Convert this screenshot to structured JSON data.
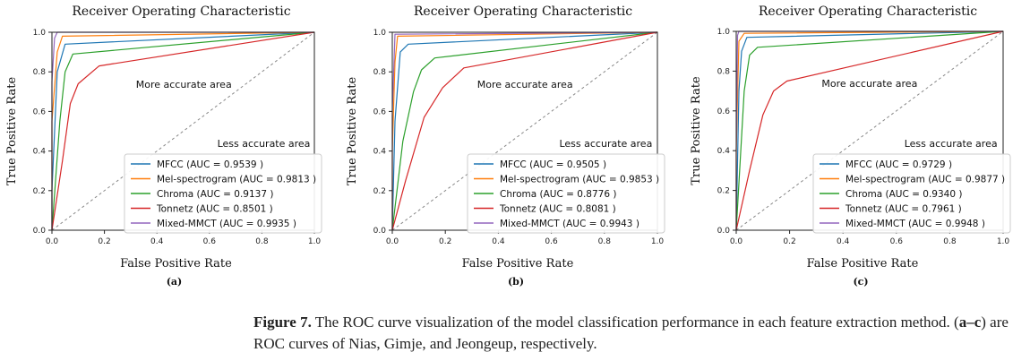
{
  "chart_data": [
    {
      "type": "line",
      "panel_label": "(a)",
      "title": "Receiver Operating Characteristic",
      "xlabel": "False Positive Rate",
      "ylabel": "True Positive Rate",
      "xlim": [
        0.0,
        1.0
      ],
      "ylim": [
        0.0,
        1.0
      ],
      "xticks": [
        "0.0",
        "0.2",
        "0.4",
        "0.6",
        "0.8",
        "1.0"
      ],
      "yticks": [
        "0.0",
        "0.2",
        "0.4",
        "0.6",
        "0.8",
        "1.0"
      ],
      "grid": false,
      "legend_position": "lower-right",
      "annotations": [
        {
          "text": "More accurate area",
          "x": 0.32,
          "y": 0.72
        },
        {
          "text": "Less accurate area",
          "x": 0.63,
          "y": 0.42
        }
      ],
      "series": [
        {
          "name": "MFCC (AUC = 0.9539 )",
          "color": "#1f77b4",
          "x": [
            0,
            0,
            0.02,
            0.05,
            1.0
          ],
          "y": [
            0,
            0.2,
            0.8,
            0.94,
            1.0
          ]
        },
        {
          "name": "Mel-spectrogram (AUC = 0.9813 )",
          "color": "#ff7f0e",
          "x": [
            0,
            0,
            0.02,
            0.04,
            1.0
          ],
          "y": [
            0,
            0.55,
            0.9,
            0.98,
            1.0
          ]
        },
        {
          "name": "Chroma (AUC = 0.9137 )",
          "color": "#2ca02c",
          "x": [
            0,
            0.03,
            0.05,
            0.08,
            1.0
          ],
          "y": [
            0,
            0.55,
            0.8,
            0.89,
            1.0
          ]
        },
        {
          "name": "Tonnetz (AUC = 0.8501 )",
          "color": "#d62728",
          "x": [
            0,
            0.04,
            0.07,
            0.1,
            0.18,
            1.0
          ],
          "y": [
            0,
            0.35,
            0.64,
            0.74,
            0.83,
            1.0
          ]
        },
        {
          "name": "Mixed-MMCT (AUC = 0.9935 )",
          "color": "#9467bd",
          "x": [
            0,
            0,
            0.01,
            0.02,
            1.0
          ],
          "y": [
            0,
            0.75,
            0.97,
            1.0,
            1.0
          ]
        }
      ]
    },
    {
      "type": "line",
      "panel_label": "(b)",
      "title": "Receiver Operating Characteristic",
      "xlabel": "False Positive Rate",
      "ylabel": "True Positive Rate",
      "xlim": [
        0.0,
        1.0
      ],
      "ylim": [
        0.0,
        1.0
      ],
      "xticks": [
        "0.0",
        "0.2",
        "0.4",
        "0.6",
        "0.8",
        "1.0"
      ],
      "yticks": [
        "0.0",
        "0.2",
        "0.4",
        "0.6",
        "0.8",
        "1.0"
      ],
      "grid": false,
      "legend_position": "lower-right",
      "annotations": [
        {
          "text": "More accurate area",
          "x": 0.32,
          "y": 0.72
        },
        {
          "text": "Less accurate area",
          "x": 0.63,
          "y": 0.42
        }
      ],
      "series": [
        {
          "name": "MFCC (AUC = 0.9505 )",
          "color": "#1f77b4",
          "x": [
            0,
            0.01,
            0.03,
            0.06,
            1.0
          ],
          "y": [
            0,
            0.55,
            0.9,
            0.94,
            1.0
          ]
        },
        {
          "name": "Mel-spectrogram (AUC = 0.9853 )",
          "color": "#ff7f0e",
          "x": [
            0,
            0,
            0.01,
            0.02,
            1.0
          ],
          "y": [
            0,
            0.4,
            0.85,
            0.98,
            1.0
          ]
        },
        {
          "name": "Chroma (AUC = 0.8776 )",
          "color": "#2ca02c",
          "x": [
            0,
            0.04,
            0.08,
            0.11,
            0.16,
            1.0
          ],
          "y": [
            0,
            0.45,
            0.7,
            0.81,
            0.87,
            1.0
          ]
        },
        {
          "name": "Tonnetz (AUC = 0.8081 )",
          "color": "#d62728",
          "x": [
            0,
            0.05,
            0.12,
            0.19,
            0.27,
            1.0
          ],
          "y": [
            0,
            0.25,
            0.57,
            0.72,
            0.82,
            1.0
          ]
        },
        {
          "name": "Mixed-MMCT (AUC = 0.9943 )",
          "color": "#9467bd",
          "x": [
            0,
            0,
            0.01,
            0.02,
            1.0
          ],
          "y": [
            0,
            0.6,
            0.99,
            0.99,
            1.0
          ]
        }
      ]
    },
    {
      "type": "line",
      "panel_label": "(c)",
      "title": "Receiver Operating Characteristic",
      "xlabel": "False Positive Rate",
      "ylabel": "True Positive Rate",
      "xlim": [
        0.0,
        1.0
      ],
      "ylim": [
        0.0,
        1.0
      ],
      "xticks": [
        "0.0",
        "0.2",
        "0.4",
        "0.6",
        "0.8",
        "1.0"
      ],
      "yticks": [
        "0.0",
        "0.2",
        "0.4",
        "0.6",
        "0.8",
        "1.0"
      ],
      "grid": false,
      "legend_position": "lower-right",
      "annotations": [
        {
          "text": "More accurate area",
          "x": 0.32,
          "y": 0.72
        },
        {
          "text": "Less accurate area",
          "x": 0.63,
          "y": 0.42
        }
      ],
      "series": [
        {
          "name": "MFCC (AUC = 0.9729 )",
          "color": "#1f77b4",
          "x": [
            0,
            0.01,
            0.02,
            0.04,
            1.0
          ],
          "y": [
            0,
            0.7,
            0.9,
            0.97,
            1.0
          ]
        },
        {
          "name": "Mel-spectrogram (AUC = 0.9877 )",
          "color": "#ff7f0e",
          "x": [
            0,
            0,
            0.01,
            0.03,
            1.0
          ],
          "y": [
            0,
            0.4,
            0.95,
            0.99,
            1.0
          ]
        },
        {
          "name": "Chroma (AUC = 0.9340 )",
          "color": "#2ca02c",
          "x": [
            0,
            0.03,
            0.05,
            0.08,
            1.0
          ],
          "y": [
            0,
            0.7,
            0.88,
            0.92,
            1.0
          ]
        },
        {
          "name": "Tonnetz (AUC = 0.7961 )",
          "color": "#d62728",
          "x": [
            0,
            0.05,
            0.1,
            0.14,
            0.19,
            1.0
          ],
          "y": [
            0,
            0.3,
            0.58,
            0.7,
            0.75,
            1.0
          ]
        },
        {
          "name": "Mixed-MMCT (AUC = 0.9948 )",
          "color": "#9467bd",
          "x": [
            0,
            0,
            0.005,
            0.01,
            1.0
          ],
          "y": [
            0,
            0.4,
            0.98,
            1.0,
            1.0
          ]
        }
      ]
    }
  ],
  "caption": {
    "label": "Figure 7.",
    "text_before": " The ROC curve visualization of the model classification performance in each feature extraction method. (",
    "bold_range": "a–c",
    "text_after": ") are ROC curves of Nias, Gimje, and Jeongeup, respectively."
  }
}
